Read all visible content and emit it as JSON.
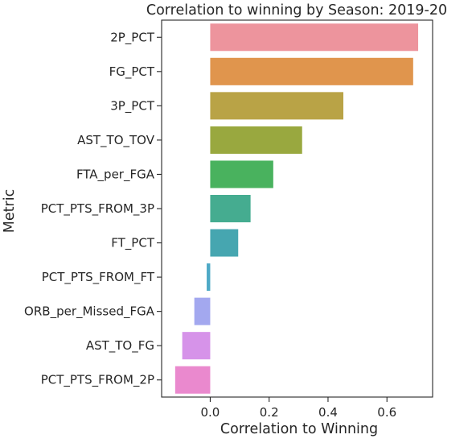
{
  "chart_data": {
    "type": "bar",
    "orientation": "horizontal",
    "title": "Correlation to winning by Season: 2019-20",
    "xlabel": "Correlation to Winning",
    "ylabel": "Metric",
    "xlim": [
      -0.165,
      0.755
    ],
    "xticks": [
      0.0,
      0.2,
      0.4,
      0.6
    ],
    "xtick_labels": [
      "0.0",
      "0.2",
      "0.4",
      "0.6"
    ],
    "grid": false,
    "categories": [
      "2P_PCT",
      "FG_PCT",
      "3P_PCT",
      "AST_TO_TOV",
      "FTA_per_FGA",
      "PCT_PTS_FROM_3P",
      "FT_PCT",
      "PCT_PTS_FROM_FT",
      "ORB_per_Missed_FGA",
      "AST_TO_FG",
      "PCT_PTS_FROM_2P"
    ],
    "values": [
      0.706,
      0.689,
      0.452,
      0.312,
      0.214,
      0.137,
      0.095,
      -0.012,
      -0.054,
      -0.095,
      -0.119
    ],
    "colors": [
      "#ED949D",
      "#E0954D",
      "#B9A346",
      "#99A83F",
      "#49B25E",
      "#45AC90",
      "#46A6B0",
      "#4DA9C6",
      "#A3A8EF",
      "#D693E9",
      "#EA89CE"
    ]
  }
}
